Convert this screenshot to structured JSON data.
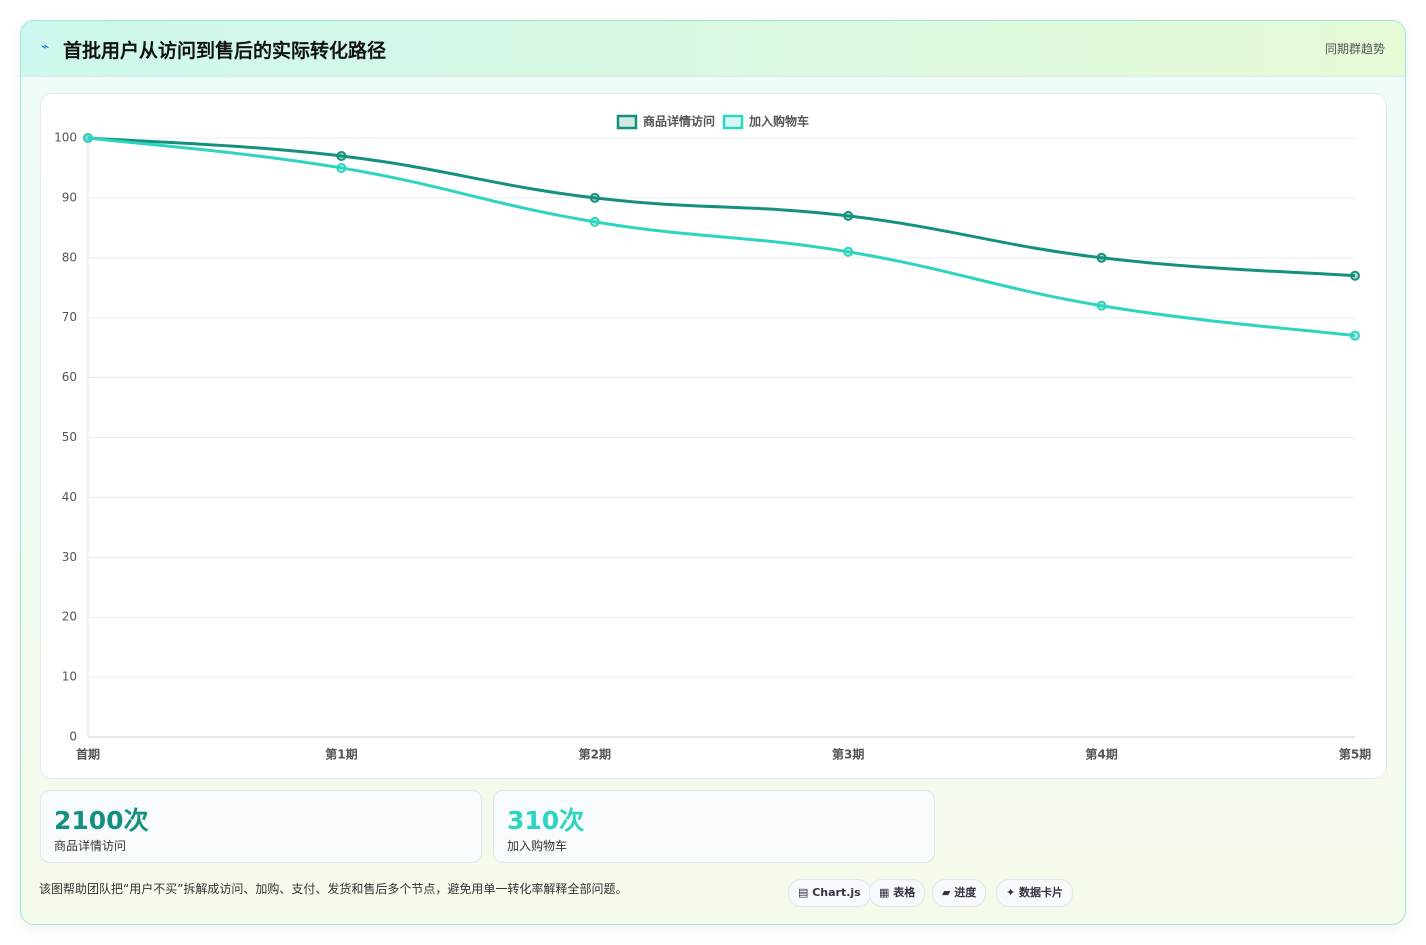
{
  "header": {
    "icon": "⌁",
    "title": "首批用户从访问到售后的实际转化路径",
    "badge": "同期群趋势"
  },
  "chart_data": {
    "type": "line",
    "categories": [
      "首期",
      "第1期",
      "第2期",
      "第3期",
      "第4期",
      "第5期"
    ],
    "series": [
      {
        "name": "商品详情访问",
        "color": "#15907f",
        "values": [
          100,
          97,
          90,
          87,
          80,
          77
        ]
      },
      {
        "name": "加入购物车",
        "color": "#2dd4bf",
        "values": [
          100,
          95,
          86,
          81,
          72,
          67
        ]
      }
    ],
    "ylim": [
      0,
      100
    ],
    "yticks": [
      0,
      10,
      20,
      30,
      40,
      50,
      60,
      70,
      80,
      90,
      100
    ],
    "grid": true,
    "legend": "top",
    "smooth": true
  },
  "stats": [
    {
      "value": "2100次",
      "label": "商品详情访问",
      "color": "#15907f"
    },
    {
      "value": "310次",
      "label": "加入购物车",
      "color": "#2dd4bf"
    }
  ],
  "note": "该图帮助团队把“用户不买”拆解成访问、加购、支付、发货和售后多个节点，避免用单一转化率解释全部问题。",
  "tags": [
    "▤ Chart.js",
    "▦ 表格",
    "▰ 进度",
    "✦ 数据卡片"
  ]
}
